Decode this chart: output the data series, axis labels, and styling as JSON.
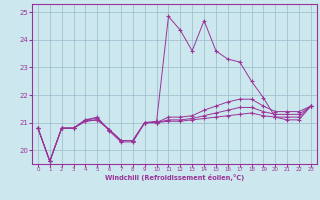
{
  "xlabel": "Windchill (Refroidissement éolien,°C)",
  "bg_color": "#cce8ee",
  "line_color": "#993399",
  "grid_color": "#99bbcc",
  "xlim": [
    -0.5,
    23.5
  ],
  "ylim": [
    19.5,
    25.3
  ],
  "xticks": [
    0,
    1,
    2,
    3,
    4,
    5,
    6,
    7,
    8,
    9,
    10,
    11,
    12,
    13,
    14,
    15,
    16,
    17,
    18,
    19,
    20,
    21,
    22,
    23
  ],
  "yticks": [
    20,
    21,
    22,
    23,
    24,
    25
  ],
  "series": [
    [
      20.8,
      19.6,
      20.8,
      20.8,
      21.1,
      21.2,
      20.7,
      20.3,
      20.3,
      21.0,
      21.05,
      24.85,
      24.35,
      23.6,
      24.7,
      23.6,
      23.3,
      23.2,
      22.5,
      21.9,
      21.2,
      21.1,
      21.1,
      21.6
    ],
    [
      20.8,
      19.6,
      20.8,
      20.8,
      21.05,
      21.1,
      20.75,
      20.35,
      20.35,
      21.0,
      21.0,
      21.05,
      21.05,
      21.1,
      21.15,
      21.2,
      21.25,
      21.3,
      21.35,
      21.25,
      21.2,
      21.2,
      21.2,
      21.6
    ],
    [
      20.8,
      19.6,
      20.8,
      20.8,
      21.05,
      21.1,
      20.75,
      20.35,
      20.35,
      21.0,
      21.0,
      21.1,
      21.1,
      21.15,
      21.25,
      21.35,
      21.45,
      21.55,
      21.55,
      21.4,
      21.3,
      21.3,
      21.3,
      21.6
    ],
    [
      20.8,
      19.6,
      20.8,
      20.8,
      21.1,
      21.15,
      20.75,
      20.35,
      20.35,
      21.0,
      21.0,
      21.2,
      21.2,
      21.25,
      21.45,
      21.6,
      21.75,
      21.85,
      21.85,
      21.6,
      21.4,
      21.4,
      21.4,
      21.6
    ]
  ]
}
